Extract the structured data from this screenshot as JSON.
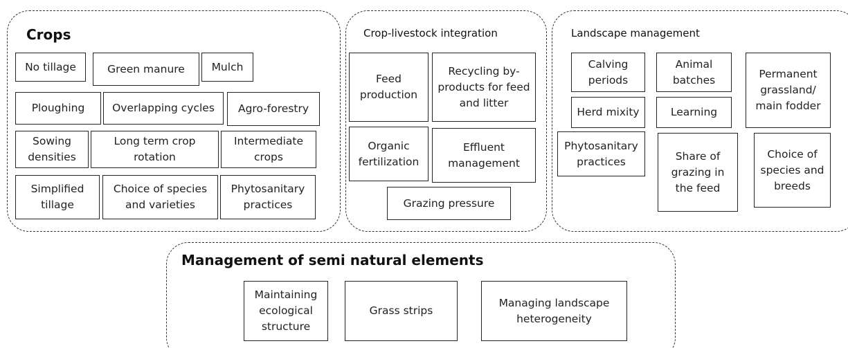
{
  "groups": [
    {
      "title": "Crops",
      "boxes": [
        "No tillage",
        "Green manure",
        "Mulch",
        "Ploughing",
        "Overlapping cycles",
        "Agro-forestry",
        "Sowing densities",
        "Long term crop rotation",
        "Intermediate crops",
        "Simplified tillage",
        "Choice of species and varieties",
        "Phytosanitary practices"
      ]
    },
    {
      "title": "Crop-livestock integration",
      "boxes": [
        "Feed production",
        "Recycling by-products for feed and litter",
        "Organic fertilization",
        "Effluent management",
        "Grazing pressure"
      ]
    },
    {
      "title": "Landscape management",
      "boxes": [
        "Calving periods",
        "Herd mixity",
        "Animal batches",
        "Learning",
        "Permanent grassland/ main fodder",
        "Phytosanitary practices",
        "Share of grazing in the feed",
        "Choice of species and breeds"
      ]
    },
    {
      "title": "Management of semi natural elements",
      "boxes": [
        "Maintaining ecological structure",
        "Grass strips",
        "Managing landscape heterogeneity"
      ]
    }
  ]
}
